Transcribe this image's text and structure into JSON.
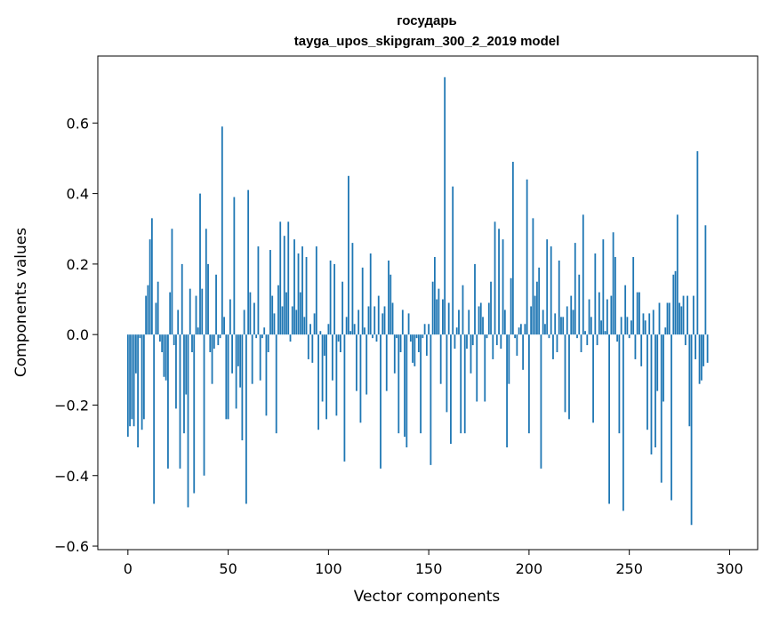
{
  "chart_data": {
    "type": "bar",
    "title": "государь",
    "subtitle": "tayga_upos_skipgram_300_2_2019 model",
    "xlabel": "Vector components",
    "ylabel": "Components values",
    "xlim": [
      -15,
      314
    ],
    "ylim": [
      -0.61,
      0.79
    ],
    "xticks": [
      0,
      50,
      100,
      150,
      200,
      250,
      300
    ],
    "yticks": [
      -0.6,
      -0.4,
      -0.2,
      0.0,
      0.2,
      0.4,
      0.6
    ],
    "xtick_labels": [
      "0",
      "50",
      "100",
      "150",
      "200",
      "250",
      "300"
    ],
    "ytick_labels": [
      "−0.6",
      "−0.4",
      "−0.2",
      "0.0",
      "0.2",
      "0.4",
      "0.6"
    ],
    "grid": false,
    "color": "#1f77b4",
    "values": [
      -0.29,
      -0.26,
      -0.24,
      -0.26,
      -0.11,
      -0.32,
      -0.01,
      -0.27,
      -0.24,
      0.11,
      0.14,
      0.27,
      0.33,
      -0.48,
      0.09,
      0.15,
      -0.02,
      -0.05,
      -0.12,
      -0.13,
      -0.38,
      0.12,
      0.3,
      -0.03,
      -0.21,
      0.07,
      -0.38,
      0.2,
      -0.28,
      -0.17,
      -0.49,
      0.13,
      -0.05,
      -0.45,
      0.11,
      0.02,
      0.4,
      0.13,
      -0.4,
      0.3,
      0.2,
      -0.05,
      -0.14,
      -0.04,
      0.17,
      -0.03,
      -0.01,
      0.59,
      0.05,
      -0.24,
      -0.24,
      0.1,
      -0.11,
      0.39,
      -0.21,
      -0.09,
      -0.15,
      -0.3,
      0.07,
      -0.48,
      0.41,
      0.12,
      -0.14,
      0.09,
      -0.01,
      0.25,
      -0.13,
      -0.01,
      0.02,
      -0.23,
      -0.05,
      0.24,
      0.11,
      0.06,
      -0.28,
      0.14,
      0.32,
      0.08,
      0.28,
      0.12,
      0.32,
      -0.02,
      0.08,
      0.27,
      0.07,
      0.23,
      0.12,
      0.25,
      0.05,
      0.22,
      -0.07,
      0.03,
      -0.08,
      0.06,
      0.25,
      -0.27,
      0.01,
      -0.19,
      -0.06,
      -0.24,
      0.03,
      0.21,
      -0.13,
      0.2,
      -0.23,
      -0.02,
      -0.05,
      0.15,
      -0.36,
      0.05,
      0.45,
      0.01,
      0.26,
      0.03,
      -0.16,
      0.07,
      -0.25,
      0.19,
      0.02,
      -0.17,
      0.08,
      0.23,
      -0.01,
      0.08,
      -0.02,
      0.11,
      -0.38,
      0.06,
      0.08,
      -0.16,
      0.21,
      0.17,
      0.09,
      -0.11,
      -0.01,
      -0.28,
      -0.05,
      0.07,
      -0.29,
      -0.32,
      0.06,
      -0.02,
      -0.08,
      -0.09,
      -0.01,
      -0.05,
      -0.28,
      -0.01,
      0.03,
      -0.06,
      0.03,
      -0.37,
      0.15,
      0.22,
      0.1,
      0.13,
      -0.14,
      0.1,
      0.73,
      -0.22,
      0.09,
      -0.31,
      0.42,
      -0.04,
      0.02,
      0.07,
      -0.28,
      0.14,
      -0.28,
      -0.04,
      0.07,
      -0.11,
      -0.03,
      0.2,
      -0.19,
      0.08,
      0.09,
      0.05,
      -0.19,
      -0.01,
      0.09,
      0.15,
      -0.07,
      0.32,
      -0.03,
      0.3,
      -0.04,
      0.27,
      0.07,
      -0.32,
      -0.14,
      0.16,
      0.49,
      -0.01,
      -0.06,
      0.02,
      0.03,
      -0.1,
      0.03,
      0.44,
      -0.28,
      0.08,
      0.33,
      0.11,
      0.15,
      0.19,
      -0.38,
      0.07,
      0.03,
      0.27,
      -0.01,
      0.25,
      -0.07,
      0.06,
      -0.05,
      0.21,
      0.05,
      0.05,
      -0.22,
      0.08,
      -0.24,
      0.11,
      0.07,
      0.26,
      -0.01,
      0.17,
      -0.05,
      0.34,
      0.01,
      -0.03,
      0.1,
      0.05,
      -0.25,
      0.23,
      -0.03,
      0.12,
      0.04,
      0.27,
      0.01,
      0.1,
      -0.48,
      0.11,
      0.29,
      0.22,
      -0.02,
      -0.28,
      0.05,
      -0.5,
      0.14,
      0.05,
      -0.01,
      0.04,
      0.22,
      -0.07,
      0.12,
      0.12,
      -0.09,
      0.06,
      0.04,
      -0.27,
      0.06,
      -0.34,
      0.07,
      -0.32,
      -0.16,
      0.09,
      -0.42,
      -0.19,
      0.02,
      0.09,
      0.09,
      -0.47,
      0.17,
      0.18,
      0.34,
      0.09,
      0.08,
      0.11,
      -0.03,
      0.11,
      -0.26,
      -0.54,
      0.11,
      -0.07,
      0.52,
      -0.14,
      -0.13,
      -0.09,
      0.31,
      -0.08
    ]
  }
}
